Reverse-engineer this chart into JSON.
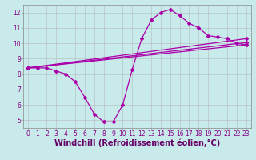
{
  "title": "",
  "xlabel": "Windchill (Refroidissement éolien,°C)",
  "ylabel": "",
  "bg_color": "#c8eaea",
  "grid_color": "#b0b0b0",
  "line_color": "#aa00aa",
  "xlim": [
    -0.5,
    23.5
  ],
  "ylim": [
    4.5,
    12.5
  ],
  "xticks": [
    0,
    1,
    2,
    3,
    4,
    5,
    6,
    7,
    8,
    9,
    10,
    11,
    12,
    13,
    14,
    15,
    16,
    17,
    18,
    19,
    20,
    21,
    22,
    23
  ],
  "yticks": [
    5,
    6,
    7,
    8,
    9,
    10,
    11,
    12
  ],
  "curve": {
    "x": [
      0,
      1,
      2,
      3,
      4,
      5,
      6,
      7,
      8,
      9,
      10,
      11,
      12,
      13,
      14,
      15,
      16,
      17,
      18,
      19,
      20,
      21,
      22,
      23
    ],
    "y": [
      8.4,
      8.4,
      8.4,
      8.2,
      8.0,
      7.5,
      6.5,
      5.4,
      4.9,
      4.9,
      6.0,
      8.3,
      10.3,
      11.5,
      12.0,
      12.2,
      11.8,
      11.3,
      11.0,
      10.5,
      10.4,
      10.3,
      10.0,
      9.9
    ]
  },
  "straight_lines": [
    {
      "x": [
        0,
        23
      ],
      "y": [
        8.4,
        9.9
      ]
    },
    {
      "x": [
        0,
        23
      ],
      "y": [
        8.4,
        10.05
      ]
    },
    {
      "x": [
        0,
        23
      ],
      "y": [
        8.4,
        10.3
      ]
    }
  ],
  "xlabel_fontsize": 7,
  "tick_fontsize": 5.5,
  "marker": "D",
  "markersize": 2.0,
  "linewidth": 0.9,
  "tick_color": "#880088",
  "label_color": "#660066"
}
